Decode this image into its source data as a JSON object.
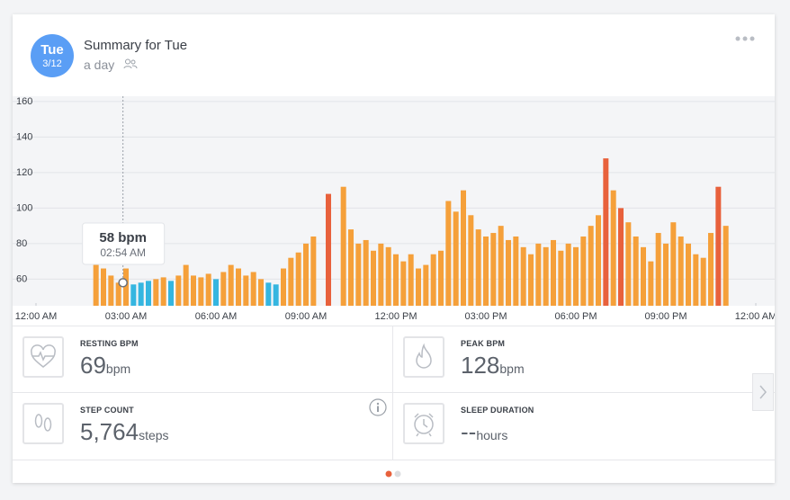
{
  "header": {
    "day": "Tue",
    "date": "3/12",
    "title": "Summary for Tue",
    "subtitle": "a day"
  },
  "chart_data": {
    "type": "bar",
    "x": [
      2,
      2.25,
      2.5,
      2.75,
      3,
      3.25,
      3.5,
      3.75,
      4,
      4.25,
      4.5,
      4.75,
      5,
      5.25,
      5.5,
      5.75,
      6,
      6.25,
      6.5,
      6.75,
      7,
      7.25,
      7.5,
      7.75,
      8,
      8.25,
      8.5,
      8.75,
      9,
      9.25,
      9.5,
      9.75,
      10,
      10.25,
      10.5,
      10.75,
      11,
      11.25,
      11.5,
      11.75,
      12,
      12.25,
      12.5,
      12.75,
      13,
      13.25,
      13.5,
      13.75,
      14,
      14.25,
      14.5,
      14.75,
      15,
      15.25,
      15.5,
      15.75,
      16,
      16.25,
      16.5,
      16.75,
      17,
      17.25,
      17.5,
      17.75,
      18,
      18.25,
      18.5,
      18.75,
      19,
      19.25,
      19.5,
      19.75,
      20,
      20.25,
      20.5,
      20.75,
      21,
      21.25,
      21.5,
      21.75,
      22,
      22.25,
      22.5,
      22.75,
      23
    ],
    "values": [
      68,
      66,
      62,
      58,
      66,
      57,
      58,
      59,
      60,
      61,
      59,
      62,
      68,
      62,
      61,
      63,
      60,
      64,
      68,
      66,
      62,
      64,
      60,
      58,
      57,
      66,
      72,
      75,
      80,
      84,
      null,
      108,
      null,
      112,
      88,
      80,
      82,
      76,
      80,
      78,
      74,
      70,
      74,
      66,
      68,
      74,
      76,
      104,
      98,
      110,
      96,
      88,
      84,
      86,
      90,
      82,
      84,
      78,
      74,
      80,
      78,
      82,
      76,
      80,
      78,
      84,
      90,
      96,
      128,
      110,
      100,
      92,
      84,
      78,
      70,
      86,
      80,
      92,
      84,
      80,
      74,
      72,
      86,
      112,
      90
    ],
    "colors": [
      "#f5a03a",
      "#f5a03a",
      "#f5a03a",
      "#f5a03a",
      "#f5a03a",
      "#35b6e0",
      "#35b6e0",
      "#35b6e0",
      "#f5a03a",
      "#f5a03a",
      "#35b6e0",
      "#f5a03a",
      "#f5a03a",
      "#f5a03a",
      "#f5a03a",
      "#f5a03a",
      "#35b6e0",
      "#f5a03a",
      "#f5a03a",
      "#f5a03a",
      "#f5a03a",
      "#f5a03a",
      "#f5a03a",
      "#35b6e0",
      "#35b6e0",
      "#f5a03a",
      "#f5a03a",
      "#f5a03a",
      "#f5a03a",
      "#f5a03a",
      "#f5a03a",
      "#e8613c",
      "#f5a03a",
      "#f5a03a",
      "#f5a03a",
      "#f5a03a",
      "#f5a03a",
      "#f5a03a",
      "#f5a03a",
      "#f5a03a",
      "#f5a03a",
      "#f5a03a",
      "#f5a03a",
      "#f5a03a",
      "#f5a03a",
      "#f5a03a",
      "#f5a03a",
      "#f5a03a",
      "#f5a03a",
      "#f5a03a",
      "#f5a03a",
      "#f5a03a",
      "#f5a03a",
      "#f5a03a",
      "#f5a03a",
      "#f5a03a",
      "#f5a03a",
      "#f5a03a",
      "#f5a03a",
      "#f5a03a",
      "#f5a03a",
      "#f5a03a",
      "#f5a03a",
      "#f5a03a",
      "#f5a03a",
      "#f5a03a",
      "#f5a03a",
      "#f5a03a",
      "#e8613c",
      "#f5a03a",
      "#e8613c",
      "#f5a03a",
      "#f5a03a",
      "#f5a03a",
      "#f5a03a",
      "#f5a03a",
      "#f5a03a",
      "#f5a03a",
      "#f5a03a",
      "#f5a03a",
      "#f5a03a",
      "#f5a03a",
      "#f5a03a",
      "#e8613c",
      "#f5a03a"
    ],
    "xlim": [
      0,
      24
    ],
    "ylim": [
      45,
      163
    ],
    "xticks": [
      {
        "value": 0,
        "label": "12:00 AM"
      },
      {
        "value": 3,
        "label": "03:00 AM"
      },
      {
        "value": 6,
        "label": "06:00 AM"
      },
      {
        "value": 9,
        "label": "09:00 AM"
      },
      {
        "value": 12,
        "label": "12:00 PM"
      },
      {
        "value": 15,
        "label": "03:00 PM"
      },
      {
        "value": 18,
        "label": "06:00 PM"
      },
      {
        "value": 21,
        "label": "09:00 PM"
      },
      {
        "value": 24,
        "label": "12:00 AM"
      }
    ],
    "yticks": [
      60,
      80,
      100,
      120,
      140,
      160
    ],
    "grid": true,
    "tooltip": {
      "x": 2.9,
      "value": 58,
      "label": "58 bpm",
      "time": "02:54 AM"
    }
  },
  "stats": [
    {
      "label": "RESTING BPM",
      "value": "69",
      "unit": "bpm"
    },
    {
      "label": "PEAK BPM",
      "value": "128",
      "unit": "bpm"
    },
    {
      "label": "STEP COUNT",
      "value": "5,764",
      "unit": "steps"
    },
    {
      "label": "SLEEP DURATION",
      "value": "--",
      "unit": "hours"
    }
  ]
}
